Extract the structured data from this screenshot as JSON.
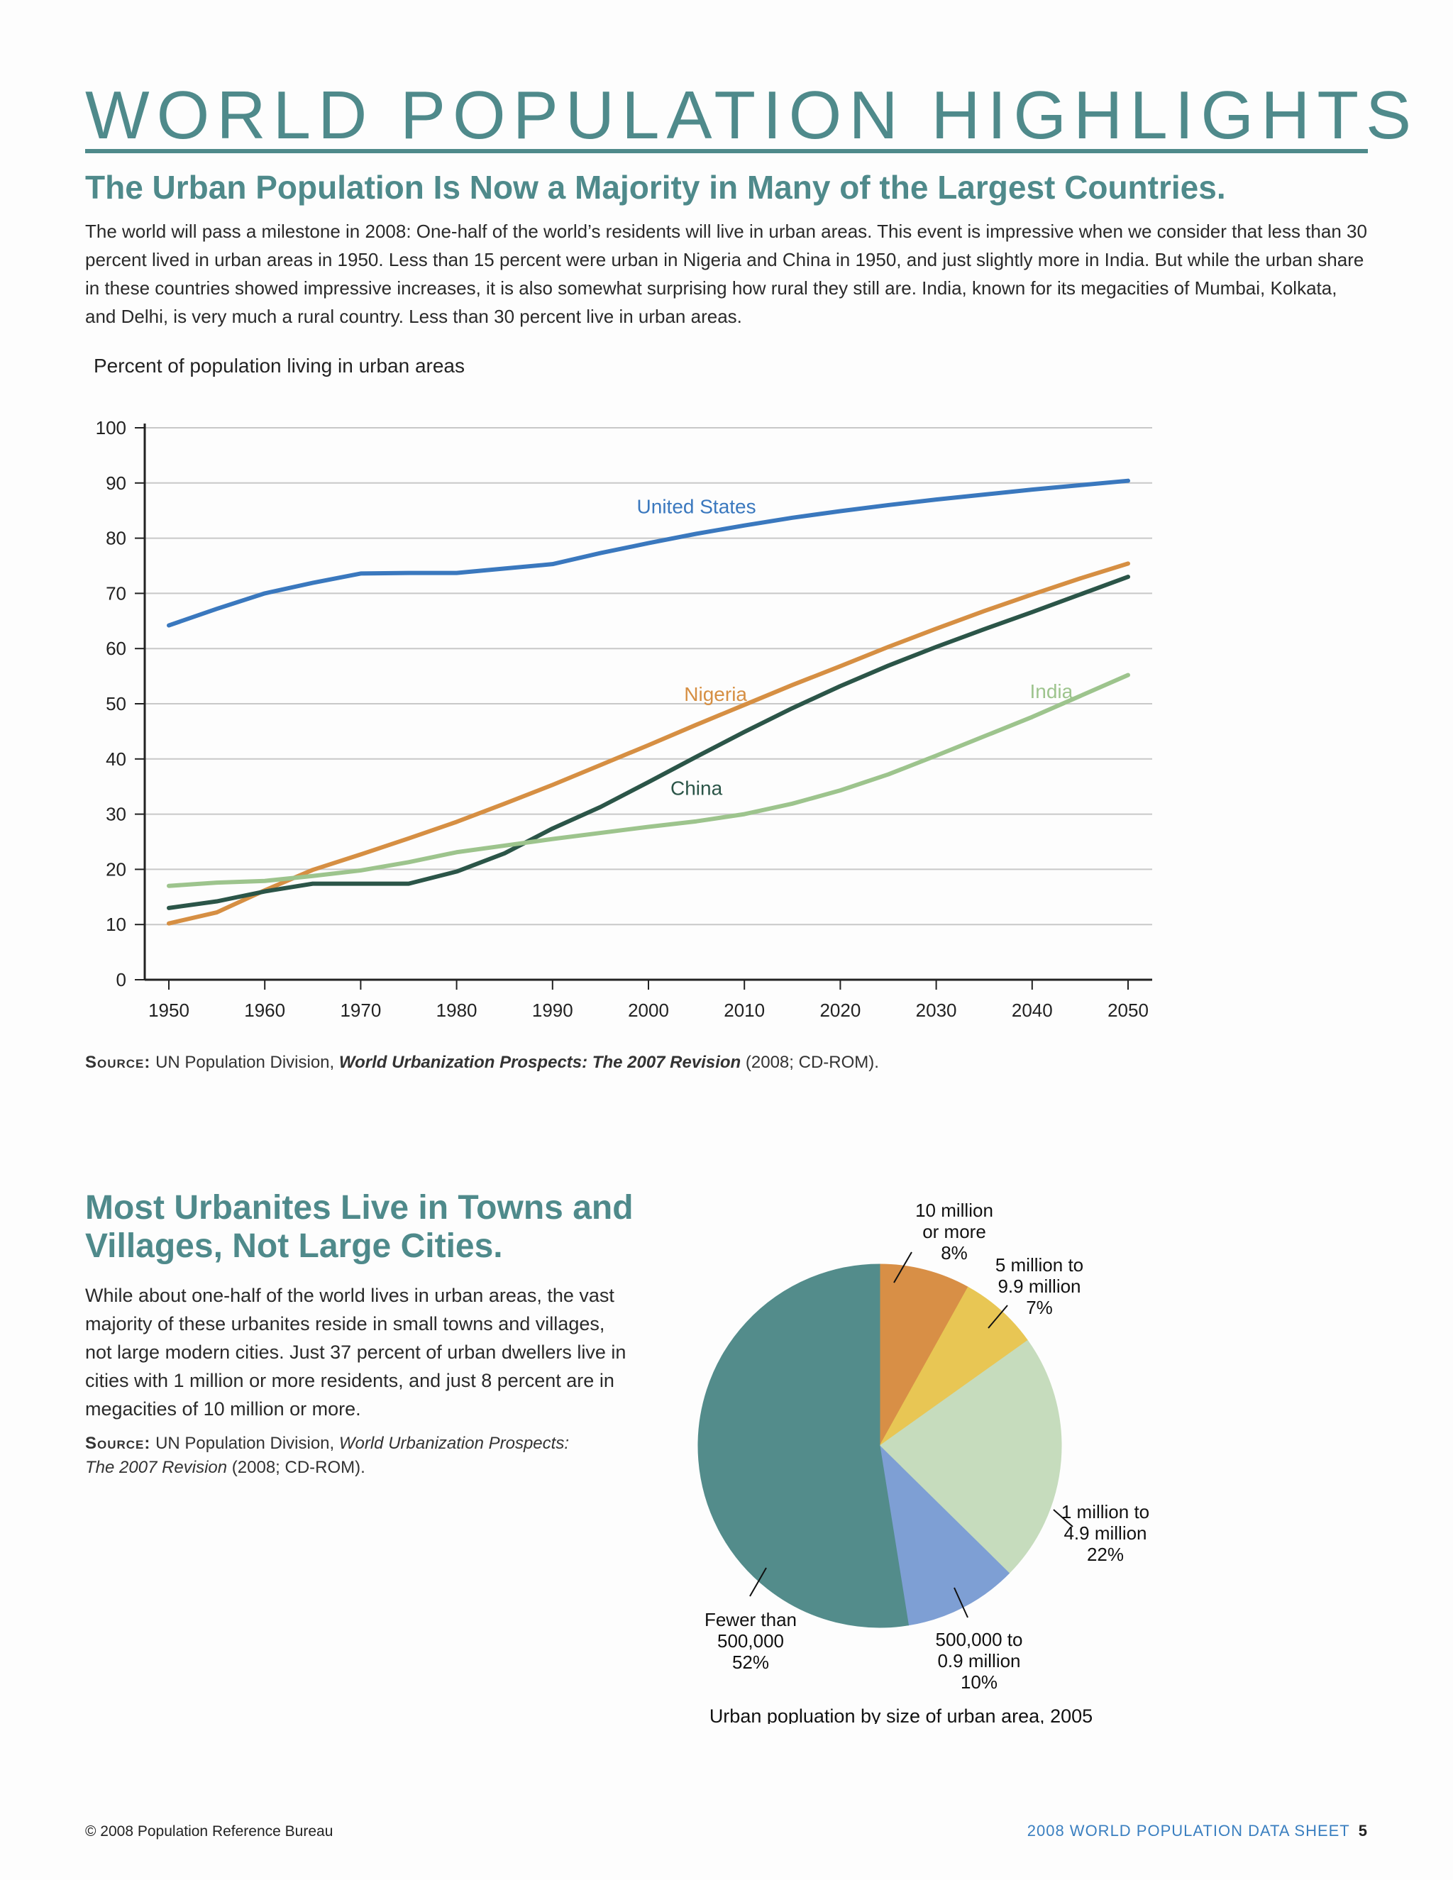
{
  "header": {
    "title": "WORLD POPULATION HIGHLIGHTS",
    "section1_heading": "The Urban Population Is Now a Majority in Many of the Largest Countries.",
    "section1_body": "The world will pass a milestone in 2008: One-half of the world’s residents will live in urban areas. This event is impressive when we consider that less than 30 percent lived in urban areas in 1950. Less than 15 percent were urban in Nigeria and China in 1950, and just slightly more in India. But while the urban share in these countries showed impressive increases, it is also somewhat surprising how rural they still are. India, known for its megacities of Mumbai, Kolkata, and Delhi, is very much a rural country. Less than 30 percent live in urban areas."
  },
  "source1": {
    "label": "Source:",
    "text_before": " UN Population Division, ",
    "title": "World Urbanization Prospects: The 2007 Revision",
    "text_after": " (2008; CD-ROM)."
  },
  "section2": {
    "heading": "Most Urbanites Live in Towns and Villages, Not Large Cities.",
    "body": "While about one-half of the world lives in urban areas, the vast majority of these urbanites reside in small towns and villages, not large modern cities. Just 37 percent of urban dwellers live in cities with 1 million or more residents, and just 8 percent are in megacities of 10 million or more.",
    "source_label": "Source:",
    "source_text_before": " UN Population Division, ",
    "source_title_line1": "World Urbanization Prospects:",
    "source_title_line2": "The 2007 Revision",
    "source_text_after": " (2008; CD-ROM)."
  },
  "footer": {
    "copyright": "© 2008 Population Reference Bureau",
    "publication": "2008 WORLD POPULATION DATA SHEET",
    "page_number": "5"
  },
  "chart_data": [
    {
      "type": "line",
      "title": "Percent of population living in urban areas",
      "xlabel": "",
      "ylabel": "",
      "x": [
        1950,
        1955,
        1960,
        1965,
        1970,
        1975,
        1980,
        1985,
        1990,
        1995,
        2000,
        2005,
        2010,
        2015,
        2020,
        2025,
        2030,
        2035,
        2040,
        2045,
        2050
      ],
      "xticks": [
        "1950",
        "1960",
        "1970",
        "1980",
        "1990",
        "2000",
        "2010",
        "2020",
        "2030",
        "2040",
        "2050"
      ],
      "yticks": [
        "0",
        "10",
        "20",
        "30",
        "40",
        "50",
        "60",
        "70",
        "80",
        "90",
        "100"
      ],
      "xlim": [
        1950,
        2050
      ],
      "ylim": [
        0,
        100
      ],
      "grid": "horizontal",
      "series": [
        {
          "name": "United States",
          "color": "#3a78be",
          "values": [
            64.2,
            67.2,
            70.0,
            71.9,
            73.6,
            73.7,
            73.7,
            74.5,
            75.3,
            77.3,
            79.1,
            80.8,
            82.3,
            83.7,
            84.9,
            86.0,
            87.0,
            87.9,
            88.8,
            89.6,
            90.4
          ]
        },
        {
          "name": "Nigeria",
          "color": "#d68f43",
          "values": [
            10.2,
            12.2,
            16.2,
            19.9,
            22.7,
            25.6,
            28.6,
            31.9,
            35.3,
            38.9,
            42.5,
            46.2,
            49.8,
            53.4,
            56.8,
            60.3,
            63.6,
            66.8,
            69.8,
            72.7,
            75.4
          ]
        },
        {
          "name": "China",
          "color": "#2b5548",
          "values": [
            13.0,
            14.2,
            16.0,
            17.4,
            17.4,
            17.4,
            19.6,
            22.9,
            27.4,
            31.3,
            35.8,
            40.4,
            44.9,
            49.2,
            53.2,
            56.9,
            60.3,
            63.5,
            66.6,
            69.8,
            73.0
          ]
        },
        {
          "name": "India",
          "color": "#9dc48d",
          "values": [
            17.0,
            17.6,
            17.9,
            18.8,
            19.8,
            21.3,
            23.1,
            24.3,
            25.5,
            26.6,
            27.7,
            28.7,
            30.0,
            31.9,
            34.3,
            37.2,
            40.6,
            44.1,
            47.6,
            51.4,
            55.2
          ]
        }
      ]
    },
    {
      "type": "pie",
      "title": "Urban popluation by size of urban area, 2005",
      "slices": [
        {
          "label_lines": [
            "10 million",
            "or more",
            "8%"
          ],
          "value": 8,
          "color": "#d88f46"
        },
        {
          "label_lines": [
            "5 million to",
            "9.9 million",
            "7%"
          ],
          "value": 7,
          "color": "#e8c654"
        },
        {
          "label_lines": [
            "1 million to",
            "4.9 million",
            "22%"
          ],
          "value": 22,
          "color": "#c6dcbd"
        },
        {
          "label_lines": [
            "500,000 to",
            "0.9 million",
            "10%"
          ],
          "value": 10,
          "color": "#7e9fd4"
        },
        {
          "label_lines": [
            "Fewer than",
            "500,000",
            "52%"
          ],
          "value": 52,
          "color": "#538c8b"
        }
      ]
    }
  ]
}
